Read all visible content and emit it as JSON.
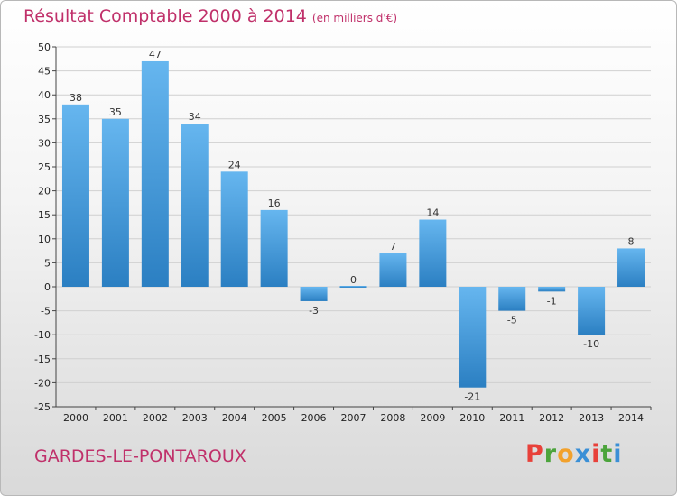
{
  "header": {
    "title": "Résultat Comptable 2000 à 2014",
    "subtitle": "(en milliers d'€)"
  },
  "footer": {
    "commune": "GARDES-LE-PONTAROUX",
    "logo_letters": [
      "P",
      "r",
      "o",
      "x",
      "i",
      "t",
      "i"
    ]
  },
  "colors": {
    "title": "#c0306a",
    "bar_light": "#66b6ef",
    "bar_dark": "#2b7fc2",
    "grid": "#d0d0d0",
    "axis": "#444444",
    "logo": [
      "#e8413a",
      "#4ca43c",
      "#f2a12c",
      "#3a8fd6",
      "#e8413a",
      "#4ca43c",
      "#3a8fd6"
    ]
  },
  "chart_data": {
    "type": "bar",
    "title": "Résultat Comptable 2000 à 2014",
    "subtitle": "(en milliers d'€)",
    "xlabel": "",
    "ylabel": "",
    "ylim": [
      -25,
      50
    ],
    "ytick_step": 5,
    "grid": true,
    "legend": "none",
    "categories": [
      "2000",
      "2001",
      "2002",
      "2003",
      "2004",
      "2005",
      "2006",
      "2007",
      "2008",
      "2009",
      "2010",
      "2011",
      "2012",
      "2013",
      "2014"
    ],
    "values": [
      38,
      35,
      47,
      34,
      24,
      16,
      -3,
      0,
      7,
      14,
      -21,
      -5,
      -1,
      -10,
      8
    ],
    "data_labels": [
      "38",
      "35",
      "47",
      "34",
      "24",
      "16",
      "-3",
      "0",
      "7",
      "14",
      "-21",
      "-5",
      "-1",
      "-10",
      "8"
    ]
  }
}
